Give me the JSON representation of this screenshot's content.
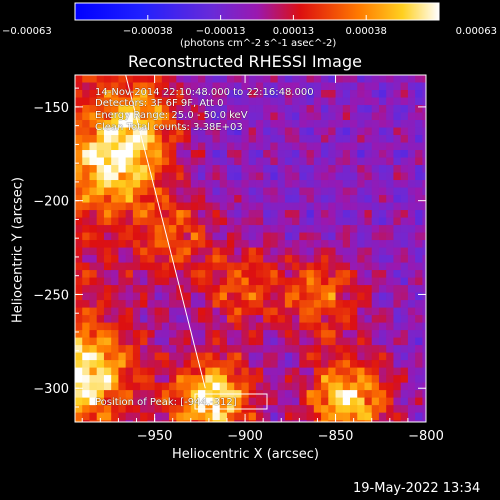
{
  "chart_data": {
    "type": "heatmap",
    "title": "Reconstructed RHESSI Image",
    "xlabel": "Heliocentric X (arcsec)",
    "ylabel": "Heliocentric Y (arcsec)",
    "xlim": [
      -994,
      -800
    ],
    "ylim": [
      -318,
      -133
    ],
    "xticks": [
      -950,
      -900,
      -850,
      -800
    ],
    "yticks": [
      -150,
      -200,
      -250,
      -300
    ],
    "colorbar": {
      "label": "(photons cm^-2 s^-1 asec^-2)",
      "range": [
        -0.00063,
        0.00063
      ],
      "ticks": [
        "-0.00063",
        "-0.00038",
        "-0.00013",
        "0.00013",
        "0.00038",
        "0.00063"
      ]
    },
    "annotations": [
      "14-Nov-2014 22:10:48.000 to 22:16:48.000",
      "Detectors: 3F 6F 9F, Att 0",
      "Energy Range: 25.0 - 50.0 keV",
      "Clean    Total counts: 3.38E+03"
    ],
    "peak_label": "Position of Peak: [-944,-312]",
    "peak_position": [
      -944,
      -312
    ],
    "limb_line": [
      [
        -966,
        -133
      ],
      [
        -922,
        -300
      ]
    ],
    "hot_regions": [
      {
        "x": -975,
        "y": -180,
        "intensity": 0.00045
      },
      {
        "x": -960,
        "y": -155,
        "intensity": 0.00038
      },
      {
        "x": -990,
        "y": -290,
        "intensity": 0.0005
      },
      {
        "x": -920,
        "y": -305,
        "intensity": 0.00063
      },
      {
        "x": -845,
        "y": -305,
        "intensity": 0.00058
      },
      {
        "x": -860,
        "y": -250,
        "intensity": 0.00035
      },
      {
        "x": -905,
        "y": -245,
        "intensity": 0.0003
      },
      {
        "x": -940,
        "y": -215,
        "intensity": 0.00028
      }
    ]
  },
  "footer_timestamp": "19-May-2022 13:34"
}
